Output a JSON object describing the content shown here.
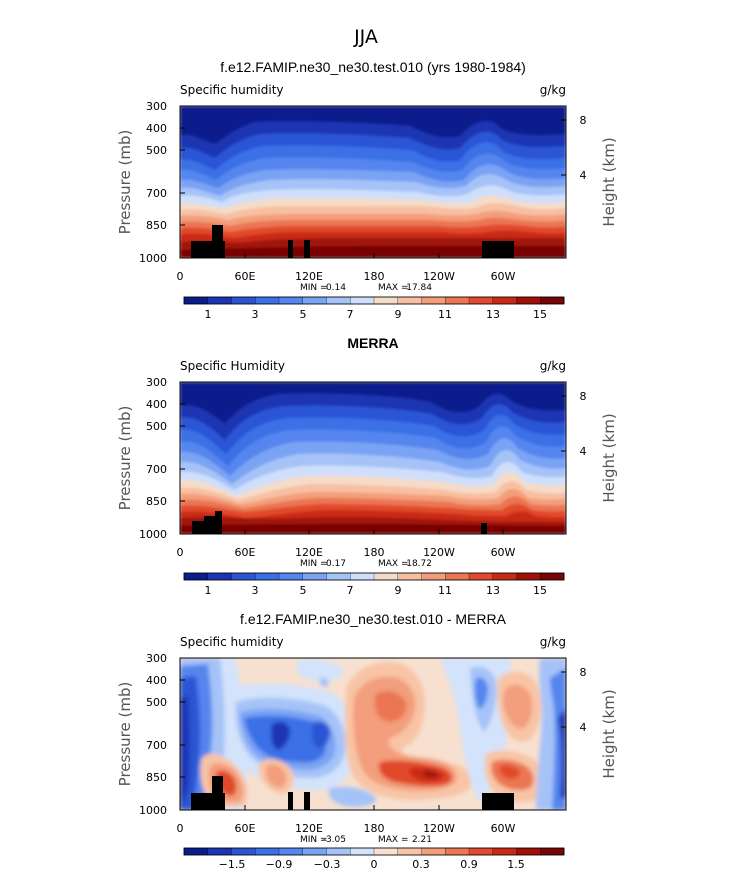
{
  "season": "JJA",
  "colors": {
    "seq": [
      "#0b1c8c",
      "#1e35b2",
      "#2c54d4",
      "#3a6fe6",
      "#5585ee",
      "#7aa3f4",
      "#a6c3f8",
      "#cfdffb",
      "#f4dcc8",
      "#f8c0a2",
      "#f39e7b",
      "#eb7653",
      "#e14a2c",
      "#c92a16",
      "#a01208",
      "#780606"
    ],
    "div": [
      "#0b1c8c",
      "#1e35b2",
      "#2c54d4",
      "#3a6fe6",
      "#5585ee",
      "#7aa3f4",
      "#a6c3f8",
      "#d3e3fb",
      "#f7e0d0",
      "#f8c4a6",
      "#f39e7b",
      "#eb7653",
      "#e14a2c",
      "#c92a16",
      "#a01208",
      "#780606"
    ],
    "topo": "#000000"
  },
  "chart_data": [
    {
      "type": "heatmap",
      "id": "model",
      "title": "f.e12.FAMIP.ne30_ne30.test.010 (yrs 1980-1984)",
      "left_string": "Specific humidity",
      "units": "g/kg",
      "ylabel": "Pressure (mb)",
      "ylabel_right": "Height (km)",
      "x_ticks": [
        "0",
        "60E",
        "120E",
        "180",
        "120W",
        "60W"
      ],
      "x_tick_values": [
        0,
        60,
        120,
        180,
        240,
        300
      ],
      "xlim": [
        0,
        358
      ],
      "y_ticks": [
        "300",
        "400",
        "500",
        "700",
        "850",
        "1000"
      ],
      "y_tick_values": [
        300,
        400,
        500,
        700,
        850,
        1000
      ],
      "ylim": [
        300,
        1000
      ],
      "right_ticks": [
        "8",
        "4"
      ],
      "right_tick_pressures": [
        362,
        620
      ],
      "min_label": "MIN =",
      "min_value": "0.14",
      "max_label": "MAX =",
      "max_value": "17.84",
      "colorbar_labels": [
        "1",
        "3",
        "5",
        "7",
        "9",
        "11",
        "13",
        "15"
      ],
      "colorbar_levels": [
        0,
        1,
        2,
        3,
        4,
        5,
        6,
        7,
        8,
        9,
        10,
        11,
        12,
        13,
        14,
        15,
        16
      ]
    },
    {
      "type": "heatmap",
      "id": "obs",
      "title": "MERRA",
      "left_string": "Specific Humidity",
      "units": "g/kg",
      "ylabel": "Pressure (mb)",
      "ylabel_right": "Height (km)",
      "x_ticks": [
        "0",
        "60E",
        "120E",
        "180",
        "120W",
        "60W"
      ],
      "x_tick_values": [
        0,
        60,
        120,
        180,
        240,
        300
      ],
      "xlim": [
        0,
        358
      ],
      "y_ticks": [
        "300",
        "400",
        "500",
        "700",
        "850",
        "1000"
      ],
      "y_tick_values": [
        300,
        400,
        500,
        700,
        850,
        1000
      ],
      "ylim": [
        300,
        1000
      ],
      "right_ticks": [
        "8",
        "4"
      ],
      "right_tick_pressures": [
        362,
        620
      ],
      "min_label": "MIN =",
      "min_value": "0.17",
      "max_label": "MAX =",
      "max_value": "18.72",
      "colorbar_labels": [
        "1",
        "3",
        "5",
        "7",
        "9",
        "11",
        "13",
        "15"
      ],
      "colorbar_levels": [
        0,
        1,
        2,
        3,
        4,
        5,
        6,
        7,
        8,
        9,
        10,
        11,
        12,
        13,
        14,
        15,
        16
      ]
    },
    {
      "type": "heatmap",
      "id": "diff",
      "title": "f.e12.FAMIP.ne30_ne30.test.010 - MERRA",
      "left_string": "Specific humidity",
      "units": "g/kg",
      "ylabel": "Pressure (mb)",
      "ylabel_right": "Height (km)",
      "x_ticks": [
        "0",
        "60E",
        "120E",
        "180",
        "120W",
        "60W"
      ],
      "x_tick_values": [
        0,
        60,
        120,
        180,
        240,
        300
      ],
      "xlim": [
        0,
        358
      ],
      "y_ticks": [
        "300",
        "400",
        "500",
        "700",
        "850",
        "1000"
      ],
      "y_tick_values": [
        300,
        400,
        500,
        700,
        850,
        1000
      ],
      "ylim": [
        300,
        1000
      ],
      "right_ticks": [
        "8",
        "4"
      ],
      "right_tick_pressures": [
        362,
        620
      ],
      "min_label": "MIN =",
      "min_value": "-3.05",
      "max_label": "MAX =",
      "max_value": "2.21",
      "colorbar_labels": [
        "−1.5",
        "−0.9",
        "−0.3",
        "0",
        "0.3",
        "0.9",
        "1.5"
      ],
      "colorbar_levels": [
        -2.1,
        -1.8,
        -1.5,
        -1.2,
        -0.9,
        -0.6,
        -0.3,
        -0.1,
        0,
        0.1,
        0.3,
        0.6,
        0.9,
        1.2,
        1.5,
        1.8,
        2.1
      ]
    }
  ]
}
